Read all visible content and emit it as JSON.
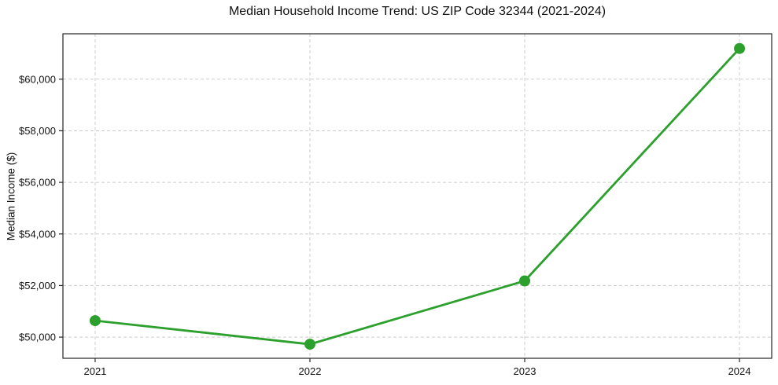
{
  "chart_data": {
    "type": "line",
    "title": "Median Household Income Trend: US ZIP Code 32344 (2021-2024)",
    "xlabel": "",
    "ylabel": "Median Income ($)",
    "x": [
      2021,
      2022,
      2023,
      2024
    ],
    "series": [
      {
        "name": "Median Household Income",
        "values": [
          50640,
          49725,
          52180,
          61190
        ]
      }
    ],
    "xtick_labels": [
      "2021",
      "2022",
      "2023",
      "2024"
    ],
    "ytick_values": [
      50000,
      52000,
      54000,
      56000,
      58000,
      60000
    ],
    "ytick_labels": [
      "$50,000",
      "$52,000",
      "$54,000",
      "$56,000",
      "$58,000",
      "$60,000"
    ],
    "xlim": [
      2020.85,
      2024.15
    ],
    "ylim": [
      49180,
      61760
    ],
    "grid": true,
    "legend": "none",
    "line_color": "#2ca02c",
    "marker_color": "#2ca02c",
    "grid_color": "#cccccc",
    "spine_color": "#262626",
    "text_color": "#111111"
  }
}
